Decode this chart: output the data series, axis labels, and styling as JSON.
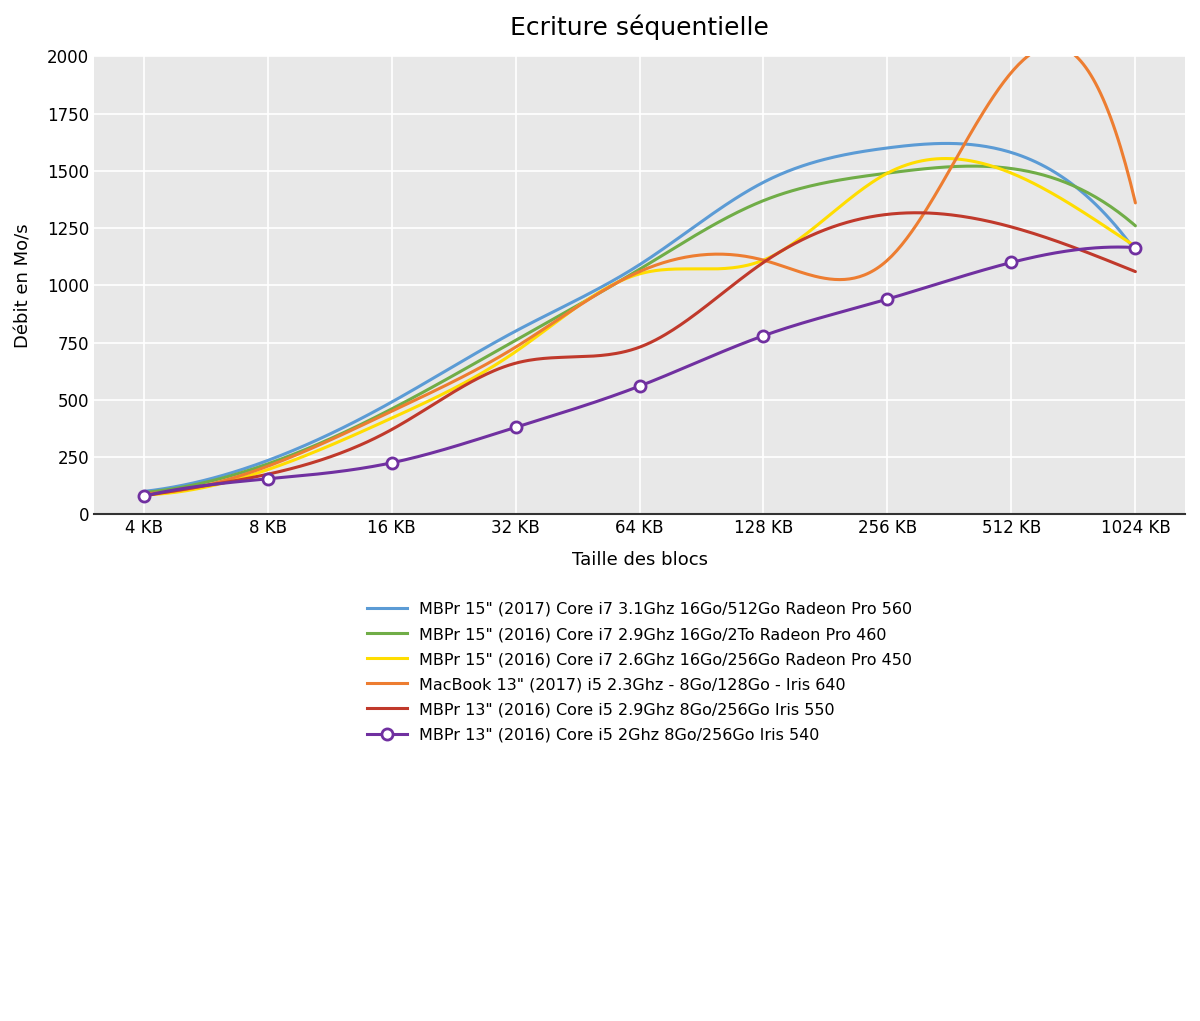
{
  "title": "Ecriture séquentielle",
  "xlabel": "Taille des blocs",
  "ylabel": "Débit en Mo/s",
  "x_labels": [
    "4 KB",
    "8 KB",
    "16 KB",
    "32 KB",
    "64 KB",
    "128 KB",
    "256 KB",
    "512 KB",
    "1024 KB"
  ],
  "ylim": [
    0,
    2000
  ],
  "series": [
    {
      "label": "MBPr 15\" (2017) Core i7 3.1Ghz 16Go/512Go Radeon Pro 560",
      "color": "#5B9BD5",
      "linewidth": 2.2,
      "marker": null,
      "values": [
        100,
        235,
        490,
        800,
        1090,
        1450,
        1600,
        1580,
        1150
      ]
    },
    {
      "label": "MBPr 15\" (2016) Core i7 2.9Ghz 16Go/2To Radeon Pro 460",
      "color": "#70AD47",
      "linewidth": 2.2,
      "marker": null,
      "values": [
        95,
        220,
        460,
        760,
        1070,
        1370,
        1490,
        1510,
        1260
      ]
    },
    {
      "label": "MBPr 15\" (2016) Core i7 2.6Ghz 16Go/256Go Radeon Pro 450",
      "color": "#FFDD00",
      "linewidth": 2.2,
      "marker": null,
      "values": [
        85,
        195,
        420,
        710,
        1050,
        1110,
        1490,
        1490,
        1170
      ]
    },
    {
      "label": "MacBook 13\" (2017) i5 2.3Ghz - 8Go/128Go - Iris 640",
      "color": "#ED7D31",
      "linewidth": 2.2,
      "marker": null,
      "values": [
        90,
        210,
        450,
        730,
        1060,
        1110,
        1110,
        1930,
        1360
      ]
    },
    {
      "label": "MBPr 13\" (2016) Core i5 2.9Ghz 8Go/256Go Iris 550",
      "color": "#C0392B",
      "linewidth": 2.2,
      "marker": null,
      "values": [
        80,
        175,
        370,
        660,
        730,
        1100,
        1310,
        1255,
        1060
      ]
    },
    {
      "label": "MBPr 13\" (2016) Core i5 2Ghz 8Go/256Go Iris 540",
      "color": "#7030A0",
      "linewidth": 2.2,
      "marker": "o",
      "markersize": 8,
      "markerfacecolor": "white",
      "markeredgewidth": 2.0,
      "values": [
        80,
        155,
        225,
        380,
        560,
        780,
        940,
        1100,
        1165
      ]
    }
  ],
  "background_color": "#E8E8E8",
  "grid_color": "#FFFFFF",
  "title_fontsize": 18,
  "label_fontsize": 13,
  "tick_fontsize": 12,
  "legend_fontsize": 11.5
}
